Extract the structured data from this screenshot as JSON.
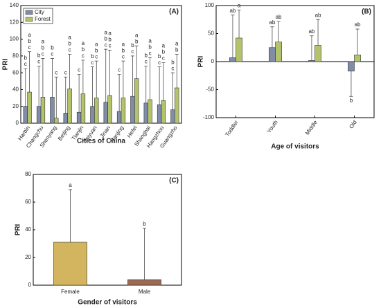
{
  "chart_data": [
    {
      "type": "bar",
      "tag": "(A)",
      "y_label": "PRI",
      "x_label": "Cities of China",
      "categories": [
        "Harbin",
        "Changchu",
        "Shenyang",
        "Beijing",
        "Tianjin",
        "Taiyuan",
        "Jinan",
        "Nanjing",
        "Hefei",
        "Shanghai",
        "Hangzhou",
        "Guangzho"
      ],
      "series": [
        {
          "name": "City",
          "color": "#7f8da8",
          "values": [
            20,
            20,
            31,
            12,
            13,
            20,
            25,
            14,
            32,
            24,
            22,
            16
          ],
          "errors": [
            45,
            48,
            46,
            43,
            45,
            47,
            63,
            44,
            48,
            44,
            45,
            44
          ],
          "letters": [
            [
              "b",
              "c"
            ],
            [
              "b",
              "c"
            ],
            [
              "b",
              "c"
            ],
            [
              "c"
            ],
            [
              "c"
            ],
            [
              "b",
              "c"
            ],
            [
              "a",
              "b",
              "c"
            ],
            [
              "c"
            ],
            [
              "b",
              "c"
            ],
            [
              "b",
              "c"
            ],
            [
              "b",
              "c"
            ],
            [
              "b",
              "c"
            ]
          ]
        },
        {
          "name": "Forest",
          "color": "#b3c36b",
          "values": [
            37,
            31,
            6,
            41,
            35,
            30,
            33,
            30,
            53,
            28,
            27,
            42
          ],
          "errors": [
            48,
            46,
            49,
            41,
            40,
            44,
            54,
            44,
            39,
            50,
            45,
            40
          ],
          "letters": [
            [
              "a",
              "b",
              "c"
            ],
            [
              "a",
              "b",
              "c"
            ],
            [
              "c"
            ],
            [
              "a",
              "b",
              "c"
            ],
            [
              "a",
              "b",
              "c"
            ],
            [
              "a",
              "b",
              "c"
            ],
            [
              "a",
              "b",
              "c"
            ],
            [
              "a",
              "b",
              "c"
            ],
            [
              "a",
              "b"
            ],
            [
              "a",
              "b",
              "c"
            ],
            [
              "a",
              "b",
              "c"
            ],
            [
              "a",
              "b"
            ]
          ]
        }
      ],
      "ylim": [
        0,
        140
      ],
      "yticks": [
        0,
        20,
        40,
        60,
        80,
        100,
        120,
        140
      ],
      "legend": "upper left"
    },
    {
      "type": "bar",
      "tag": "(B)",
      "y_label": "PRI",
      "x_label": "Age of visitors",
      "categories": [
        "Toddler",
        "Youth",
        "Middle",
        "Old"
      ],
      "series": [
        {
          "name": "City",
          "color": "#7f8da8",
          "values": [
            7,
            25,
            2,
            -17
          ],
          "errors": [
            76,
            37,
            44,
            45
          ],
          "letters": [
            [
              "ab"
            ],
            [
              "ab"
            ],
            [
              "ab"
            ],
            [
              "b"
            ]
          ]
        },
        {
          "name": "Forest",
          "color": "#b3c36b",
          "values": [
            42,
            35,
            29,
            12
          ],
          "errors": [
            50,
            37,
            46,
            46
          ],
          "letters": [
            [
              "a"
            ],
            [
              "ab"
            ],
            [
              "ab"
            ],
            [
              "ab"
            ]
          ]
        }
      ],
      "ylim": [
        -100,
        100
      ],
      "yticks": [
        -100,
        -50,
        0,
        50,
        100
      ]
    },
    {
      "type": "bar",
      "tag": "(C)",
      "y_label": "PRI",
      "x_label": "Gender of visitors",
      "categories": [
        "Female",
        "Male"
      ],
      "values": [
        31,
        4
      ],
      "errors": [
        38,
        37
      ],
      "colors": [
        "#d2b55e",
        "#9c6a52"
      ],
      "letters": [
        [
          "a"
        ],
        [
          "b"
        ]
      ],
      "ylim": [
        0,
        80
      ],
      "yticks": [
        0,
        20,
        40,
        60,
        80
      ]
    }
  ]
}
